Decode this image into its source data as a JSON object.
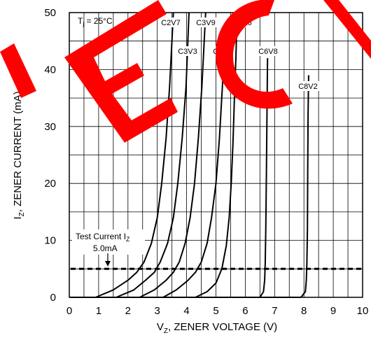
{
  "chart_data": {
    "type": "line",
    "xlabel_main": "V",
    "xlabel_sub": "Z",
    "xlabel_rest": ", ZENER VOLTAGE (V)",
    "ylabel_main": "I",
    "ylabel_sub": "Z",
    "ylabel_rest": ", ZENER CURRENT (mA)",
    "xlim": [
      0,
      10
    ],
    "ylim": [
      0,
      50
    ],
    "x_ticks": [
      "0",
      "1",
      "2",
      "3",
      "4",
      "5",
      "6",
      "7",
      "8",
      "9",
      "10"
    ],
    "y_ticks": [
      "0",
      "10",
      "20",
      "30",
      "40",
      "50"
    ],
    "grid": true,
    "condition_main": "T",
    "condition_sub": "j",
    "condition_rest": " = 25°C",
    "test_current": {
      "label_main": "Test Current I",
      "label_sub": "Z",
      "value_label": "5.0mA",
      "value": 5.0
    },
    "series": [
      {
        "name": "C2V7",
        "x": [
          0.9,
          1.5,
          2.0,
          2.3,
          2.55,
          2.8,
          3.0,
          3.15,
          3.3,
          3.42,
          3.55
        ],
        "y": [
          0,
          1.3,
          3.0,
          4.4,
          6.2,
          9.5,
          14.0,
          20.0,
          28.0,
          37.0,
          50.0
        ]
      },
      {
        "name": "C3V3",
        "x": [
          1.6,
          2.2,
          2.6,
          2.9,
          3.1,
          3.35,
          3.55,
          3.7,
          3.85,
          3.98,
          4.08
        ],
        "y": [
          0,
          1.3,
          3.0,
          4.4,
          6.2,
          9.5,
          14.0,
          20.0,
          28.0,
          37.0,
          50.0
        ]
      },
      {
        "name": "C3V9",
        "x": [
          2.4,
          2.9,
          3.3,
          3.55,
          3.75,
          3.95,
          4.12,
          4.27,
          4.4,
          4.52,
          4.65
        ],
        "y": [
          0,
          1.3,
          3.0,
          4.4,
          6.2,
          9.5,
          14.0,
          20.0,
          28.0,
          37.0,
          50.0
        ]
      },
      {
        "name": "C4V7",
        "x": [
          3.2,
          3.65,
          4.05,
          4.3,
          4.5,
          4.7,
          4.85,
          5.0,
          5.12,
          5.22,
          5.3
        ],
        "y": [
          0,
          1.3,
          3.0,
          4.4,
          6.2,
          9.5,
          14.0,
          20.0,
          28.0,
          37.0,
          45.0
        ]
      },
      {
        "name": "C5V6",
        "x": [
          4.3,
          4.7,
          5.0,
          5.2,
          5.35,
          5.45,
          5.52,
          5.58,
          5.63,
          5.68,
          5.72
        ],
        "y": [
          0,
          1.0,
          2.5,
          5.0,
          9.0,
          14.0,
          20.0,
          27.0,
          35.0,
          42.0,
          50.0
        ]
      },
      {
        "name": "C6V8",
        "x": [
          6.5,
          6.62,
          6.66,
          6.68,
          6.7,
          6.72,
          6.74,
          6.76
        ],
        "y": [
          0,
          1.0,
          3.0,
          6.0,
          12.0,
          22.0,
          32.0,
          42.0
        ]
      },
      {
        "name": "C8V2",
        "x": [
          7.9,
          8.05,
          8.08,
          8.1,
          8.12,
          8.13,
          8.14,
          8.16
        ],
        "y": [
          0,
          1.0,
          3.0,
          6.0,
          12.0,
          22.0,
          32.0,
          39.0
        ]
      }
    ]
  },
  "colors": {
    "curve": "#000000",
    "grid": "#000000",
    "background": "#ffffff",
    "watermark": "#ff0000"
  },
  "watermark_icon": "red-logo-watermark"
}
